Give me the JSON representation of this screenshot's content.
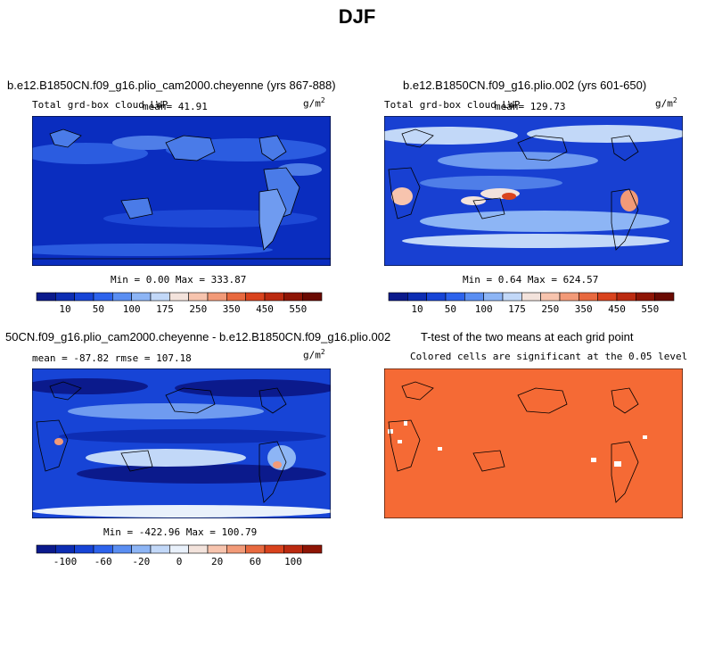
{
  "title": "DJF",
  "colors": {
    "ocean_deep": "#0a2dbf",
    "ocean_mid": "#2b5ce0",
    "ocean_light": "#6f9bf0",
    "sig_color": "#f56a35"
  },
  "panels": [
    {
      "title": "b.e12.B1850CN.f09_g16.plio_cam2000.cheyenne (yrs 867-888)",
      "var_label": "Total grd-box cloud LWP",
      "mean_text": "mean=  41.91",
      "units": "g/m",
      "units_exp": "2",
      "minmax_text": "Min =   0.00 Max = 333.87"
    },
    {
      "title": "b.e12.B1850CN.f09_g16.plio.002 (yrs 601-650)",
      "var_label": "Total grd-box cloud LWP",
      "mean_text": "mean= 129.73",
      "units": "g/m",
      "units_exp": "2",
      "minmax_text": "Min =   0.64 Max = 624.57"
    },
    {
      "title": "50CN.f09_g16.plio_cam2000.cheyenne - b.e12.B1850CN.f09_g16.plio.002",
      "stats_text": "mean = -87.82    rmse = 107.18",
      "units": "g/m",
      "units_exp": "2",
      "minmax_text": "Min = -422.96 Max = 100.79"
    },
    {
      "title": "T-test of the two means at each grid point",
      "subtitle": "Colored cells are significant at the 0.05 level"
    }
  ],
  "colorbar_abs": {
    "labels": [
      "10",
      "50",
      "100",
      "175",
      "250",
      "350",
      "450",
      "550"
    ],
    "colors": [
      "#0b1a8c",
      "#0d2db3",
      "#1744d6",
      "#2d63ec",
      "#5a8ef2",
      "#8db5f5",
      "#c2d8f8",
      "#f3e3dc",
      "#f7c4ae",
      "#f29a78",
      "#e8693f",
      "#d9431d",
      "#bb2a10",
      "#8e1505",
      "#6a0a02"
    ]
  },
  "colorbar_diff": {
    "labels": [
      "-100",
      "-60",
      "-20",
      "0",
      "20",
      "60",
      "100"
    ],
    "colors": [
      "#0b1a8c",
      "#0d2db3",
      "#1744d6",
      "#2d63ec",
      "#5a8ef2",
      "#8db5f5",
      "#c2d8f8",
      "#e9f1fb",
      "#f3e3dc",
      "#f7c4ae",
      "#f29a78",
      "#e8693f",
      "#d9431d",
      "#bb2a10",
      "#8e1505"
    ]
  }
}
